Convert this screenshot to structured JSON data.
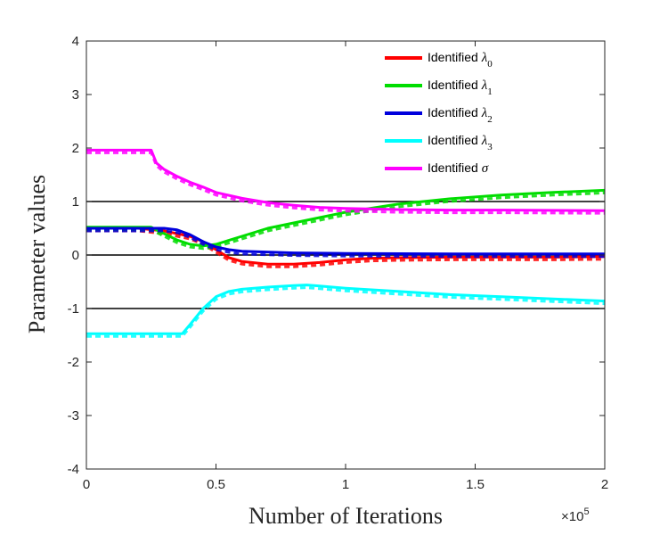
{
  "chart_data": {
    "type": "line",
    "xlabel": "Number of Iterations",
    "ylabel": "Parameter values",
    "x_multiplier_base": "×10",
    "x_multiplier_exp": "5",
    "xlim": [
      0,
      2
    ],
    "ylim": [
      -4,
      4
    ],
    "xticks": [
      0,
      0.5,
      1,
      1.5,
      2
    ],
    "xtick_labels": [
      "0",
      "0.5",
      "1",
      "1.5",
      "2"
    ],
    "yticks": [
      -4,
      -3,
      -2,
      -1,
      0,
      1,
      2,
      3,
      4
    ],
    "ytick_labels": [
      "-4",
      "-3",
      "-2",
      "-1",
      "0",
      "1",
      "2",
      "3",
      "4"
    ],
    "reference_lines": [
      1,
      0,
      -1
    ],
    "legend_position": "top-right",
    "series": [
      {
        "name": "Identified λ0",
        "label_text": "Identified ",
        "symbol": "λ",
        "subscript": "0",
        "color": "#ff0000",
        "x": [
          0,
          0.2,
          0.3,
          0.4,
          0.45,
          0.5,
          0.55,
          0.6,
          0.7,
          0.8,
          0.9,
          1.0,
          1.1,
          1.2,
          1.4,
          1.6,
          1.8,
          2.0
        ],
        "y": [
          0.5,
          0.5,
          0.45,
          0.35,
          0.25,
          0.1,
          -0.05,
          -0.12,
          -0.17,
          -0.17,
          -0.14,
          -0.09,
          -0.06,
          -0.05,
          -0.04,
          -0.04,
          -0.04,
          -0.03
        ]
      },
      {
        "name": "Identified λ1",
        "label_text": "Identified ",
        "symbol": "λ",
        "subscript": "1",
        "color": "#00dd00",
        "x": [
          0,
          0.25,
          0.3,
          0.35,
          0.4,
          0.45,
          0.5,
          0.6,
          0.7,
          0.8,
          0.9,
          1.0,
          1.2,
          1.4,
          1.6,
          1.8,
          2.0
        ],
        "y": [
          0.52,
          0.52,
          0.4,
          0.28,
          0.2,
          0.17,
          0.2,
          0.35,
          0.5,
          0.6,
          0.7,
          0.8,
          0.95,
          1.05,
          1.12,
          1.17,
          1.21
        ]
      },
      {
        "name": "Identified λ2",
        "label_text": "Identified ",
        "symbol": "λ",
        "subscript": "2",
        "color": "#0000dd",
        "x": [
          0,
          0.3,
          0.35,
          0.4,
          0.45,
          0.5,
          0.55,
          0.6,
          0.8,
          1.0,
          1.5,
          2.0
        ],
        "y": [
          0.5,
          0.5,
          0.47,
          0.38,
          0.25,
          0.15,
          0.1,
          0.07,
          0.04,
          0.03,
          0.02,
          0.02
        ]
      },
      {
        "name": "Identified λ3",
        "label_text": "Identified ",
        "symbol": "λ",
        "subscript": "3",
        "color": "#00ffff",
        "x": [
          0,
          0.37,
          0.4,
          0.45,
          0.5,
          0.55,
          0.6,
          0.7,
          0.8,
          0.85,
          0.9,
          1.0,
          1.2,
          1.4,
          1.6,
          1.8,
          2.0
        ],
        "y": [
          -1.47,
          -1.47,
          -1.3,
          -1.0,
          -0.78,
          -0.68,
          -0.64,
          -0.6,
          -0.57,
          -0.56,
          -0.58,
          -0.62,
          -0.68,
          -0.74,
          -0.78,
          -0.82,
          -0.86
        ]
      },
      {
        "name": "Identified σ",
        "label_text": "Identified ",
        "symbol": "σ",
        "subscript": "",
        "color": "#ff00ff",
        "x": [
          0,
          0.25,
          0.27,
          0.3,
          0.35,
          0.4,
          0.45,
          0.5,
          0.6,
          0.7,
          0.8,
          0.9,
          1.0,
          1.2,
          1.4,
          1.6,
          2.0
        ],
        "y": [
          1.96,
          1.96,
          1.72,
          1.6,
          1.47,
          1.36,
          1.27,
          1.17,
          1.06,
          0.98,
          0.93,
          0.89,
          0.87,
          0.85,
          0.84,
          0.84,
          0.83
        ]
      }
    ]
  }
}
